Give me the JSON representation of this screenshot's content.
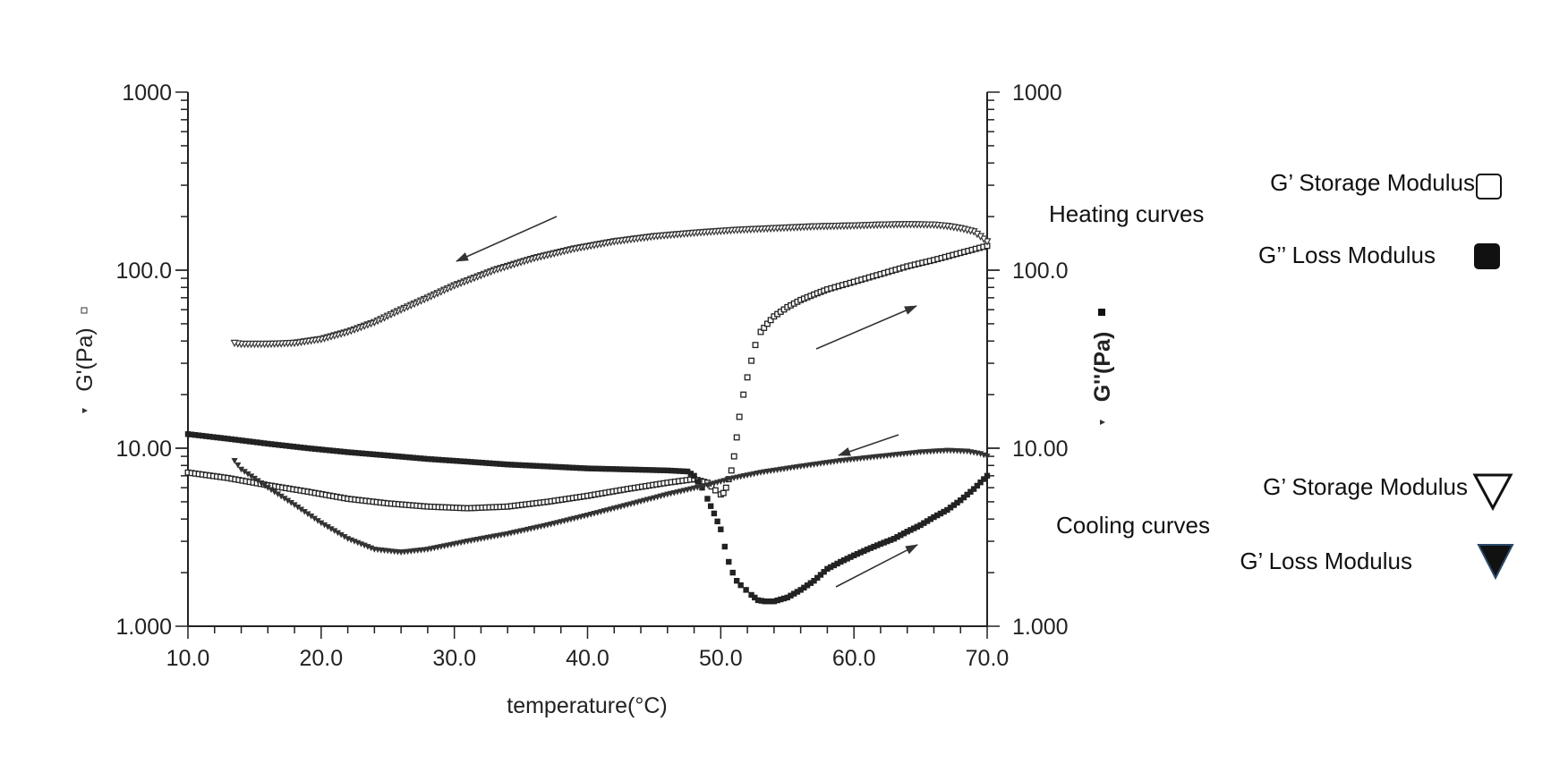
{
  "chart_data": {
    "type": "scatter",
    "xlabel": "temperature(°C)",
    "ylabel_left": "G'(Pa)",
    "ylabel_right": "G''(Pa)",
    "x_scale": "linear",
    "y_scale": "log",
    "xlim": [
      10,
      70
    ],
    "ylim": [
      1,
      1000
    ],
    "x_ticks": [
      "10.0",
      "20.0",
      "30.0",
      "40.0",
      "50.0",
      "60.0",
      "70.0"
    ],
    "y_ticks_left": [
      "1.000",
      "10.00",
      "100.0",
      "1000"
    ],
    "y_ticks_right": [
      "1.000",
      "10.00",
      "100.0",
      "1000"
    ],
    "grid": false,
    "legend_placement": "right",
    "legend": {
      "heating_group": "Heating curves",
      "cooling_group": "Cooling curves",
      "heating_storage": "G’  Storage Modulus",
      "heating_loss": "G’’  Loss   Modulus",
      "cooling_storage": "G’  Storage Modulus",
      "cooling_loss": "G’  Loss   Modulus"
    },
    "series": [
      {
        "key": "heating_storage",
        "marker": "open-square",
        "x": [
          10.0,
          13.0,
          16.0,
          19.0,
          22.0,
          25.0,
          28.0,
          31.0,
          34.0,
          37.0,
          40.0,
          43.0,
          46.0,
          48.0,
          49.0,
          49.6,
          50.0,
          50.2,
          50.4,
          50.6,
          50.8,
          51.0,
          51.2,
          51.4,
          51.7,
          52.0,
          52.3,
          52.6,
          53.0,
          53.5,
          54.0,
          55.0,
          56.0,
          57.0,
          58.0,
          60.0,
          62.0,
          64.0,
          66.0,
          68.0,
          70.0
        ],
        "y": [
          7.3,
          6.8,
          6.2,
          5.7,
          5.2,
          4.9,
          4.7,
          4.6,
          4.7,
          5.0,
          5.4,
          5.9,
          6.4,
          6.7,
          6.4,
          5.8,
          5.5,
          5.6,
          6.0,
          6.7,
          7.5,
          9.0,
          11.5,
          15.0,
          20.0,
          25.0,
          31.0,
          38.0,
          45.0,
          50.0,
          55.0,
          62.0,
          68.0,
          73.0,
          78.0,
          86.0,
          95.0,
          105.0,
          114.0,
          125.0,
          137.0
        ]
      },
      {
        "key": "heating_loss",
        "marker": "filled-square",
        "x": [
          10.0,
          13.0,
          16.0,
          19.0,
          22.0,
          25.0,
          28.0,
          31.0,
          34.0,
          37.0,
          40.0,
          43.0,
          46.0,
          47.5,
          48.0,
          48.6,
          49.0,
          49.5,
          50.0,
          50.3,
          50.6,
          50.9,
          51.2,
          51.5,
          51.9,
          52.3,
          52.8,
          53.3,
          54.0,
          55.0,
          56.0,
          57.0,
          58.0,
          59.0,
          60.0,
          61.0,
          62.0,
          63.0,
          64.0,
          65.0,
          66.0,
          67.0,
          68.0,
          69.0,
          70.0
        ],
        "y": [
          12.0,
          11.3,
          10.6,
          10.0,
          9.5,
          9.1,
          8.7,
          8.4,
          8.1,
          7.9,
          7.7,
          7.6,
          7.5,
          7.4,
          7.0,
          6.0,
          5.2,
          4.3,
          3.5,
          2.8,
          2.3,
          2.0,
          1.8,
          1.7,
          1.6,
          1.5,
          1.4,
          1.38,
          1.38,
          1.45,
          1.6,
          1.8,
          2.1,
          2.3,
          2.5,
          2.7,
          2.9,
          3.1,
          3.4,
          3.7,
          4.1,
          4.5,
          5.1,
          5.9,
          7.0
        ]
      },
      {
        "key": "cooling_storage",
        "marker": "open-triangle",
        "x": [
          70.0,
          69.5,
          69.0,
          68.0,
          67.0,
          66.0,
          64.0,
          62.0,
          60.0,
          57.0,
          54.0,
          51.0,
          48.0,
          45.0,
          42.0,
          39.0,
          36.0,
          33.0,
          30.0,
          28.0,
          26.0,
          24.0,
          22.0,
          20.0,
          18.0,
          16.0,
          14.0,
          13.5
        ],
        "y": [
          145.0,
          155.0,
          165.0,
          172.0,
          177.0,
          180.0,
          181.0,
          180.0,
          178.0,
          176.0,
          172.0,
          168.0,
          162.0,
          155.0,
          145.0,
          132.0,
          117.0,
          100.0,
          82.0,
          70.0,
          60.0,
          51.0,
          45.0,
          41.0,
          39.0,
          38.5,
          38.5,
          39.0
        ]
      },
      {
        "key": "cooling_loss",
        "marker": "filled-triangle",
        "x": [
          70.0,
          69.5,
          68.5,
          67.0,
          65.0,
          62.0,
          59.0,
          56.0,
          53.0,
          51.0,
          49.0,
          46.0,
          43.0,
          40.0,
          37.0,
          34.0,
          31.0,
          28.0,
          26.0,
          24.0,
          22.0,
          20.0,
          18.0,
          16.0,
          14.0,
          13.5
        ],
        "y": [
          9.0,
          9.3,
          9.6,
          9.7,
          9.5,
          9.0,
          8.5,
          7.9,
          7.3,
          6.8,
          6.2,
          5.5,
          4.8,
          4.2,
          3.7,
          3.3,
          3.0,
          2.7,
          2.6,
          2.7,
          3.1,
          3.8,
          4.8,
          6.0,
          7.6,
          8.5
        ]
      }
    ]
  }
}
